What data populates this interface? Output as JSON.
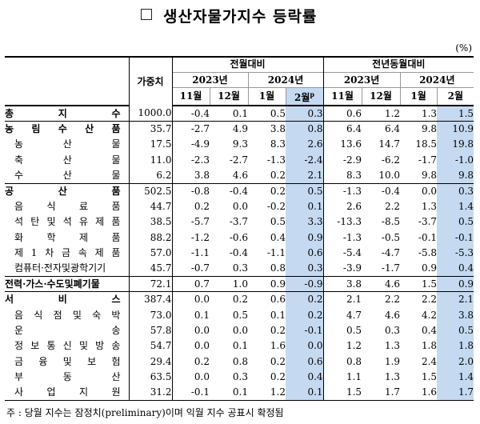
{
  "title": "생산자물가지수 등락률",
  "unit": "(%)",
  "header": {
    "weight": "가중치",
    "mom": "전월대비",
    "yoy": "전년동월대비",
    "y2023": "2023년",
    "y2024": "2024년",
    "m11": "11월",
    "m12": "12월",
    "m1": "1월",
    "m2": "2월",
    "p_mark": "p"
  },
  "rows": [
    {
      "label": "총 지 수",
      "weight": "1000.0",
      "vals": [
        "-0.4",
        "0.1",
        "0.5",
        "0.3",
        "0.6",
        "1.2",
        "1.3",
        "1.5"
      ],
      "kind": "major"
    },
    {
      "label": "농 림 수 산 품",
      "weight": "35.7",
      "vals": [
        "-2.7",
        "4.9",
        "3.8",
        "0.8",
        "6.4",
        "6.4",
        "9.8",
        "10.9"
      ],
      "kind": "major"
    },
    {
      "label": "농 산 물",
      "weight": "17.5",
      "vals": [
        "-4.9",
        "9.3",
        "8.3",
        "2.6",
        "13.6",
        "14.7",
        "18.5",
        "19.8"
      ],
      "kind": "sub"
    },
    {
      "label": "축 산 물",
      "weight": "11.0",
      "vals": [
        "-2.3",
        "-2.7",
        "-1.3",
        "-2.4",
        "-2.9",
        "-6.2",
        "-1.7",
        "-1.0"
      ],
      "kind": "sub"
    },
    {
      "label": "수 산 물",
      "weight": "6.2",
      "vals": [
        "3.8",
        "4.6",
        "0.2",
        "2.1",
        "8.3",
        "10.0",
        "9.8",
        "9.8"
      ],
      "kind": "sub"
    },
    {
      "label": "공 산 품",
      "weight": "502.5",
      "vals": [
        "-0.8",
        "-0.4",
        "0.2",
        "0.5",
        "-1.3",
        "-0.4",
        "0.0",
        "0.3"
      ],
      "kind": "major"
    },
    {
      "label": "음 식 료 품",
      "weight": "44.7",
      "vals": [
        "0.2",
        "0.0",
        "-0.2",
        "0.1",
        "2.6",
        "2.2",
        "1.3",
        "1.4"
      ],
      "kind": "sub"
    },
    {
      "label": "석 탄 및 석 유 제 품",
      "weight": "38.5",
      "vals": [
        "-5.7",
        "-3.7",
        "0.5",
        "3.3",
        "-13.3",
        "-8.5",
        "-3.7",
        "0.5"
      ],
      "kind": "sub"
    },
    {
      "label": "화 학 제 품",
      "weight": "88.2",
      "vals": [
        "-1.2",
        "-0.6",
        "0.4",
        "0.9",
        "-1.3",
        "-0.5",
        "-0.1",
        "-0.1"
      ],
      "kind": "sub"
    },
    {
      "label": "제 1 차 금 속 제 품",
      "weight": "57.0",
      "vals": [
        "-1.1",
        "-0.4",
        "-1.1",
        "0.6",
        "-5.4",
        "-4.7",
        "-5.8",
        "-5.3"
      ],
      "kind": "sub"
    },
    {
      "label": "컴퓨터·전자및광학기기",
      "weight": "45.7",
      "vals": [
        "-0.7",
        "0.3",
        "0.8",
        "0.3",
        "-3.9",
        "-1.7",
        "0.9",
        "0.4"
      ],
      "kind": "sub"
    },
    {
      "label": "전력·가스·수도및폐기물",
      "weight": "72.1",
      "vals": [
        "0.7",
        "1.0",
        "0.9",
        "-0.9",
        "3.8",
        "4.6",
        "1.5",
        "0.9"
      ],
      "kind": "major"
    },
    {
      "label": "서 비 스",
      "weight": "387.4",
      "vals": [
        "0.0",
        "0.2",
        "0.6",
        "0.2",
        "2.1",
        "2.2",
        "2.2",
        "2.1"
      ],
      "kind": "major"
    },
    {
      "label": "음 식 점 및 숙 박",
      "weight": "73.0",
      "vals": [
        "0.1",
        "0.5",
        "0.1",
        "0.2",
        "4.7",
        "4.6",
        "4.2",
        "3.8"
      ],
      "kind": "sub"
    },
    {
      "label": "운 송",
      "weight": "57.8",
      "vals": [
        "0.0",
        "0.0",
        "0.2",
        "-0.1",
        "0.5",
        "0.3",
        "0.4",
        "0.5"
      ],
      "kind": "sub"
    },
    {
      "label": "정 보 통 신 및 방 송",
      "weight": "54.7",
      "vals": [
        "0.0",
        "0.1",
        "1.6",
        "0.0",
        "1.2",
        "1.3",
        "1.8",
        "1.8"
      ],
      "kind": "sub"
    },
    {
      "label": "금 융 및 보 험",
      "weight": "29.4",
      "vals": [
        "0.2",
        "0.8",
        "0.2",
        "0.6",
        "0.8",
        "1.9",
        "2.4",
        "2.0"
      ],
      "kind": "sub"
    },
    {
      "label": "부 동 산",
      "weight": "63.5",
      "vals": [
        "0.0",
        "0.3",
        "0.2",
        "0.4",
        "1.1",
        "1.3",
        "1.5",
        "1.4"
      ],
      "kind": "sub"
    },
    {
      "label": "사 업 지 원",
      "weight": "31.2",
      "vals": [
        "-0.1",
        "0.1",
        "1.2",
        "0.1",
        "1.5",
        "1.7",
        "1.6",
        "1.7"
      ],
      "kind": "sub"
    }
  ],
  "footnote": "주 : 당월 지수는 잠정치(preliminary)이며 익월 지수 공표시 확정됨"
}
